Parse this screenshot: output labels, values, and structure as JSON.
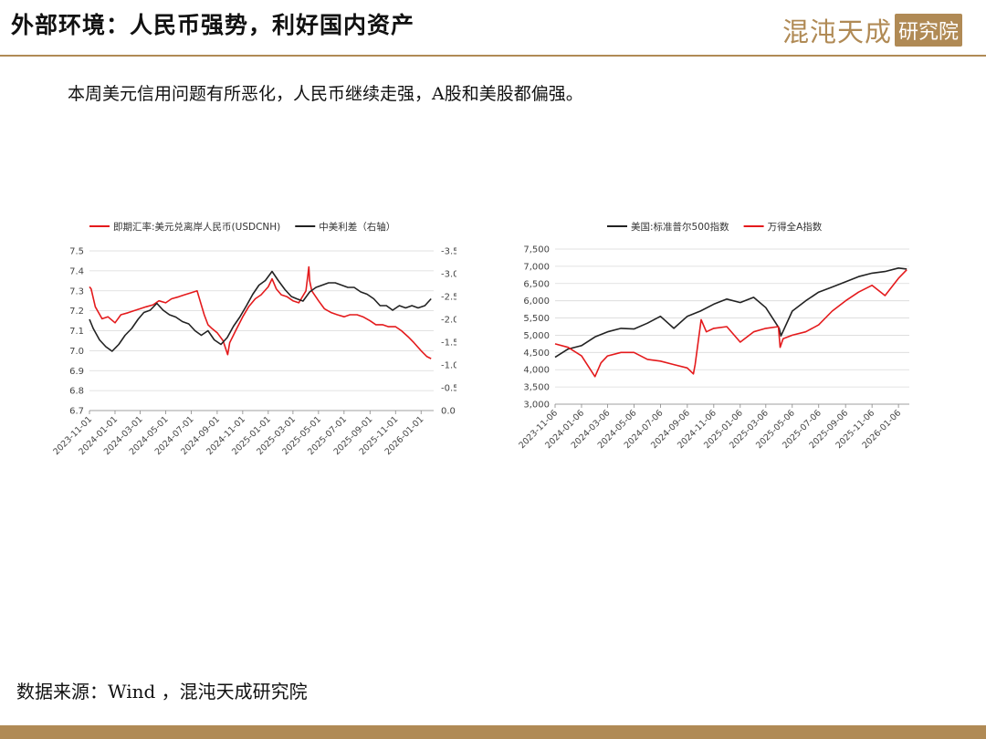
{
  "header": {
    "title": "外部环境：人民币强势，利好国内资产",
    "logo_text": "混沌天成",
    "logo_box_text": "研究院"
  },
  "subtitle": "本周美元信用问题有所恶化，人民币继续走强，A股和美股都偏强。",
  "source": "数据来源：Wind ，混沌天成研究院",
  "colors": {
    "accent": "#b08a55",
    "red": "#e41a1c",
    "black": "#222222"
  },
  "chart_data": [
    {
      "type": "line",
      "legend": [
        "即期汇率:美元兑离岸人民币(USDCNH)",
        "中美利差（右轴）"
      ],
      "x_ticks": [
        "2023-11-01",
        "2024-01-01",
        "2024-03-01",
        "2024-05-01",
        "2024-07-01",
        "2024-09-01",
        "2024-11-01",
        "2025-01-01",
        "2025-03-01",
        "2025-05-01",
        "2025-07-01",
        "2025-09-01",
        "2025-11-01",
        "2026-01-01"
      ],
      "y_left": {
        "lim": [
          6.7,
          7.5
        ],
        "ticks": [
          "7.5",
          "7.4",
          "7.3",
          "7.2",
          "7.1",
          "7.0",
          "6.9",
          "6.8",
          "6.7"
        ]
      },
      "y_right": {
        "lim": [
          0.0,
          -3.5
        ],
        "inverted": true,
        "ticks": [
          "-3.5",
          "-3.0",
          "-2.5",
          "-2.0",
          "-1.5",
          "-1.0",
          "-0.5",
          "0.0"
        ]
      },
      "series": [
        {
          "name": "即期汇率:美元兑离岸人民币(USDCNH)",
          "color": "#e41a1c",
          "axis": "left",
          "x": [
            "2023-11-01",
            "2023-11-05",
            "2023-11-15",
            "2023-12-01",
            "2023-12-15",
            "2024-01-01",
            "2024-01-15",
            "2024-02-01",
            "2024-02-15",
            "2024-03-01",
            "2024-03-15",
            "2024-04-01",
            "2024-04-15",
            "2024-05-01",
            "2024-05-15",
            "2024-06-01",
            "2024-06-15",
            "2024-07-01",
            "2024-07-15",
            "2024-08-01",
            "2024-08-10",
            "2024-08-20",
            "2024-09-01",
            "2024-09-15",
            "2024-09-26",
            "2024-10-01",
            "2024-10-15",
            "2024-11-01",
            "2024-11-15",
            "2024-12-01",
            "2024-12-15",
            "2025-01-01",
            "2025-01-10",
            "2025-01-20",
            "2025-02-01",
            "2025-02-15",
            "2025-03-01",
            "2025-03-15",
            "2025-04-01",
            "2025-04-08",
            "2025-04-10",
            "2025-04-15",
            "2025-05-01",
            "2025-05-15",
            "2025-06-01",
            "2025-06-15",
            "2025-07-01",
            "2025-07-15",
            "2025-08-01",
            "2025-08-15",
            "2025-09-01",
            "2025-09-15",
            "2025-10-01",
            "2025-10-15",
            "2025-11-01",
            "2025-11-15",
            "2025-12-01",
            "2025-12-15",
            "2026-01-01",
            "2026-01-15",
            "2026-01-25"
          ],
          "y": [
            7.32,
            7.31,
            7.22,
            7.16,
            7.17,
            7.14,
            7.18,
            7.19,
            7.2,
            7.21,
            7.22,
            7.23,
            7.25,
            7.24,
            7.26,
            7.27,
            7.28,
            7.29,
            7.3,
            7.18,
            7.13,
            7.11,
            7.09,
            7.05,
            6.98,
            7.04,
            7.1,
            7.17,
            7.22,
            7.26,
            7.28,
            7.32,
            7.36,
            7.31,
            7.28,
            7.27,
            7.25,
            7.24,
            7.3,
            7.42,
            7.35,
            7.3,
            7.25,
            7.21,
            7.19,
            7.18,
            7.17,
            7.18,
            7.18,
            7.17,
            7.15,
            7.13,
            7.13,
            7.12,
            7.12,
            7.1,
            7.07,
            7.04,
            7.0,
            6.97,
            6.96
          ]
        },
        {
          "name": "中美利差（右轴）",
          "color": "#222222",
          "axis": "right",
          "x": [
            "2023-11-01",
            "2023-11-10",
            "2023-11-25",
            "2023-12-10",
            "2023-12-25",
            "2024-01-10",
            "2024-01-25",
            "2024-02-10",
            "2024-02-25",
            "2024-03-10",
            "2024-03-25",
            "2024-04-10",
            "2024-04-25",
            "2024-05-10",
            "2024-05-25",
            "2024-06-10",
            "2024-06-25",
            "2024-07-10",
            "2024-07-25",
            "2024-08-10",
            "2024-08-25",
            "2024-09-10",
            "2024-09-25",
            "2024-10-10",
            "2024-10-25",
            "2024-11-10",
            "2024-11-25",
            "2024-12-10",
            "2024-12-25",
            "2025-01-10",
            "2025-01-25",
            "2025-02-10",
            "2025-02-25",
            "2025-03-10",
            "2025-03-25",
            "2025-04-10",
            "2025-04-25",
            "2025-05-10",
            "2025-05-25",
            "2025-06-10",
            "2025-06-25",
            "2025-07-10",
            "2025-07-25",
            "2025-08-10",
            "2025-08-25",
            "2025-09-10",
            "2025-09-25",
            "2025-10-10",
            "2025-10-25",
            "2025-11-10",
            "2025-11-25",
            "2025-12-10",
            "2025-12-25",
            "2026-01-10",
            "2026-01-25"
          ],
          "y": [
            -2.0,
            -1.8,
            -1.55,
            -1.4,
            -1.3,
            -1.45,
            -1.65,
            -1.8,
            -2.0,
            -2.15,
            -2.2,
            -2.35,
            -2.2,
            -2.1,
            -2.05,
            -1.95,
            -1.9,
            -1.75,
            -1.65,
            -1.75,
            -1.55,
            -1.45,
            -1.6,
            -1.85,
            -2.05,
            -2.3,
            -2.55,
            -2.75,
            -2.85,
            -3.05,
            -2.85,
            -2.65,
            -2.5,
            -2.45,
            -2.4,
            -2.6,
            -2.7,
            -2.75,
            -2.8,
            -2.8,
            -2.75,
            -2.7,
            -2.7,
            -2.6,
            -2.55,
            -2.45,
            -2.3,
            -2.3,
            -2.2,
            -2.3,
            -2.25,
            -2.3,
            -2.25,
            -2.3,
            -2.45
          ]
        }
      ]
    },
    {
      "type": "line",
      "legend": [
        "美国:标准普尔500指数",
        "万得全A指数"
      ],
      "x_ticks": [
        "2023-11-06",
        "2024-01-06",
        "2024-03-06",
        "2024-05-06",
        "2024-07-06",
        "2024-09-06",
        "2024-11-06",
        "2025-01-06",
        "2025-03-06",
        "2025-05-06",
        "2025-07-06",
        "2025-09-06",
        "2025-11-06",
        "2026-01-06"
      ],
      "y_axis": {
        "lim": [
          3000,
          7500
        ],
        "ticks": [
          "7,500",
          "7,000",
          "6,500",
          "6,000",
          "5,500",
          "5,000",
          "4,500",
          "4,000",
          "3,500",
          "3,000"
        ]
      },
      "series": [
        {
          "name": "美国:标准普尔500指数",
          "color": "#222222",
          "x": [
            "2023-11-06",
            "2023-12-06",
            "2024-01-06",
            "2024-02-06",
            "2024-03-06",
            "2024-04-06",
            "2024-05-06",
            "2024-06-06",
            "2024-07-06",
            "2024-08-06",
            "2024-09-06",
            "2024-10-06",
            "2024-11-06",
            "2024-12-06",
            "2025-01-06",
            "2025-02-06",
            "2025-03-06",
            "2025-04-06",
            "2025-04-10",
            "2025-05-06",
            "2025-06-06",
            "2025-07-06",
            "2025-08-06",
            "2025-09-06",
            "2025-10-06",
            "2025-11-06",
            "2025-12-06",
            "2026-01-06",
            "2026-01-25"
          ],
          "y": [
            4360,
            4600,
            4700,
            4950,
            5100,
            5200,
            5180,
            5350,
            5550,
            5200,
            5550,
            5700,
            5900,
            6050,
            5950,
            6100,
            5800,
            5200,
            4980,
            5700,
            6000,
            6250,
            6400,
            6550,
            6700,
            6800,
            6850,
            6950,
            6920
          ]
        },
        {
          "name": "万得全A指数",
          "color": "#e41a1c",
          "x": [
            "2023-11-06",
            "2023-12-06",
            "2024-01-06",
            "2024-02-06",
            "2024-02-20",
            "2024-03-06",
            "2024-04-06",
            "2024-05-06",
            "2024-06-06",
            "2024-07-06",
            "2024-08-06",
            "2024-09-06",
            "2024-09-20",
            "2024-09-24",
            "2024-10-08",
            "2024-10-20",
            "2024-11-06",
            "2024-12-06",
            "2025-01-06",
            "2025-02-06",
            "2025-03-06",
            "2025-04-04",
            "2025-04-08",
            "2025-04-15",
            "2025-05-06",
            "2025-06-06",
            "2025-07-06",
            "2025-08-06",
            "2025-09-06",
            "2025-10-06",
            "2025-11-06",
            "2025-12-06",
            "2026-01-06",
            "2026-01-25"
          ],
          "y": [
            4750,
            4650,
            4400,
            3800,
            4200,
            4400,
            4500,
            4500,
            4300,
            4250,
            4150,
            4050,
            3880,
            4150,
            5450,
            5100,
            5200,
            5250,
            4800,
            5100,
            5200,
            5250,
            4650,
            4900,
            5000,
            5100,
            5300,
            5700,
            6000,
            6250,
            6450,
            6150,
            6650,
            6900
          ]
        }
      ]
    }
  ]
}
